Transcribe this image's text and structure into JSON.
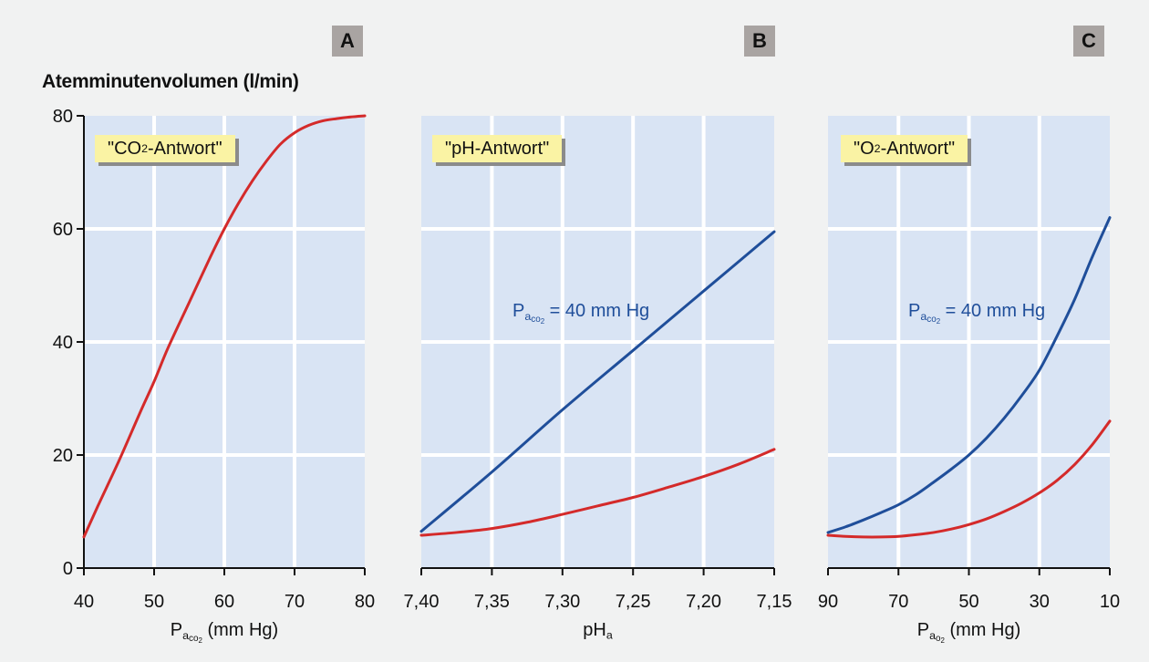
{
  "figure": {
    "y_axis_title": "Atemminutenvolumen (l/min)",
    "colors": {
      "panel_bg": "#d9e4f4",
      "grid": "#ffffff",
      "red": "#d42a2a",
      "blue": "#1f4e9a",
      "badge_bg": "#faf3a4",
      "letter_bg": "#a9a4a2"
    }
  },
  "chart_data": [
    {
      "type": "line",
      "panel_letter": "A",
      "badge": {
        "pre": "\"CO",
        "sub": "2",
        "post": "-Antwort\""
      },
      "xlabel": {
        "pre": "P",
        "sub": "a",
        "subsub": "co",
        "subsub2": "2",
        "post": " (mm Hg)"
      },
      "xlim": [
        40,
        80
      ],
      "x_ticks": [
        40,
        50,
        60,
        70,
        80
      ],
      "x_tick_labels": [
        "40",
        "50",
        "60",
        "70",
        "80"
      ],
      "ylim": [
        0,
        80
      ],
      "y_ticks": [
        0,
        20,
        40,
        60,
        80
      ],
      "y_tick_labels": [
        "0",
        "20",
        "40",
        "60",
        "80"
      ],
      "series": [
        {
          "color": "red",
          "x": [
            40,
            42,
            45,
            48,
            50,
            52,
            55,
            58,
            60,
            62,
            64,
            66,
            68,
            70,
            72,
            74,
            76,
            78,
            80
          ],
          "y": [
            5.5,
            11,
            19,
            27.5,
            33,
            39,
            47,
            55,
            60,
            64.5,
            68.5,
            72,
            75,
            77,
            78.3,
            79.1,
            79.5,
            79.8,
            80
          ]
        }
      ],
      "annotation": null
    },
    {
      "type": "line",
      "panel_letter": "B",
      "badge": {
        "pre": "\"pH-Antwort\"",
        "sub": "",
        "post": ""
      },
      "xlabel": {
        "pre": "pH",
        "sub": "a",
        "subsub": "",
        "subsub2": "",
        "post": ""
      },
      "xlim": [
        7.4,
        7.15
      ],
      "x_ticks": [
        7.4,
        7.35,
        7.3,
        7.25,
        7.2,
        7.15
      ],
      "x_tick_labels": [
        "7,40",
        "7,35",
        "7,30",
        "7,25",
        "7,20",
        "7,15"
      ],
      "ylim": [
        0,
        80
      ],
      "y_ticks": [
        0,
        20,
        40,
        60,
        80
      ],
      "y_tick_labels": [
        "",
        "",
        "",
        "",
        ""
      ],
      "series": [
        {
          "name": "Pa,CO2 = 40 mm Hg",
          "color": "blue",
          "x": [
            7.4,
            7.35,
            7.3,
            7.25,
            7.2,
            7.15
          ],
          "y": [
            6.5,
            17,
            28,
            38.5,
            49,
            59.5
          ]
        },
        {
          "color": "red",
          "x": [
            7.4,
            7.375,
            7.35,
            7.325,
            7.3,
            7.275,
            7.25,
            7.225,
            7.2,
            7.175,
            7.15
          ],
          "y": [
            5.8,
            6.3,
            7,
            8.1,
            9.5,
            11,
            12.5,
            14.3,
            16.2,
            18.4,
            21
          ]
        }
      ],
      "annotation": {
        "pre": "P",
        "sub": "a",
        "subsub": "co",
        "subsub2": "2",
        "post": " = 40 mm Hg"
      }
    },
    {
      "type": "line",
      "panel_letter": "C",
      "badge": {
        "pre": "\"O",
        "sub": "2",
        "post": "-Antwort\""
      },
      "xlabel": {
        "pre": "P",
        "sub": "a",
        "subsub": "o",
        "subsub2": "2",
        "post": " (mm Hg)"
      },
      "xlim": [
        90,
        10
      ],
      "x_ticks": [
        90,
        70,
        50,
        30,
        10
      ],
      "x_tick_labels": [
        "90",
        "70",
        "50",
        "30",
        "10"
      ],
      "ylim": [
        0,
        80
      ],
      "y_ticks": [
        0,
        20,
        40,
        60,
        80
      ],
      "y_tick_labels": [
        "",
        "",
        "",
        "",
        ""
      ],
      "series": [
        {
          "name": "Pa,CO2 = 40 mm Hg",
          "color": "blue",
          "x": [
            90,
            85,
            80,
            75,
            70,
            65,
            60,
            55,
            50,
            45,
            40,
            35,
            30,
            25,
            20,
            15,
            10
          ],
          "y": [
            6.3,
            7.3,
            8.5,
            9.8,
            11.2,
            13,
            15.2,
            17.5,
            20,
            23,
            26.5,
            30.5,
            35,
            41,
            47.5,
            55,
            62
          ]
        },
        {
          "color": "red",
          "x": [
            90,
            85,
            80,
            75,
            70,
            65,
            60,
            55,
            50,
            45,
            40,
            35,
            30,
            25,
            20,
            15,
            10
          ],
          "y": [
            5.8,
            5.6,
            5.5,
            5.5,
            5.6,
            5.9,
            6.3,
            6.9,
            7.7,
            8.7,
            10,
            11.5,
            13.3,
            15.5,
            18.3,
            21.8,
            26
          ]
        }
      ],
      "annotation": {
        "pre": "P",
        "sub": "a",
        "subsub": "co",
        "subsub2": "2",
        "post": " = 40 mm Hg"
      }
    }
  ]
}
